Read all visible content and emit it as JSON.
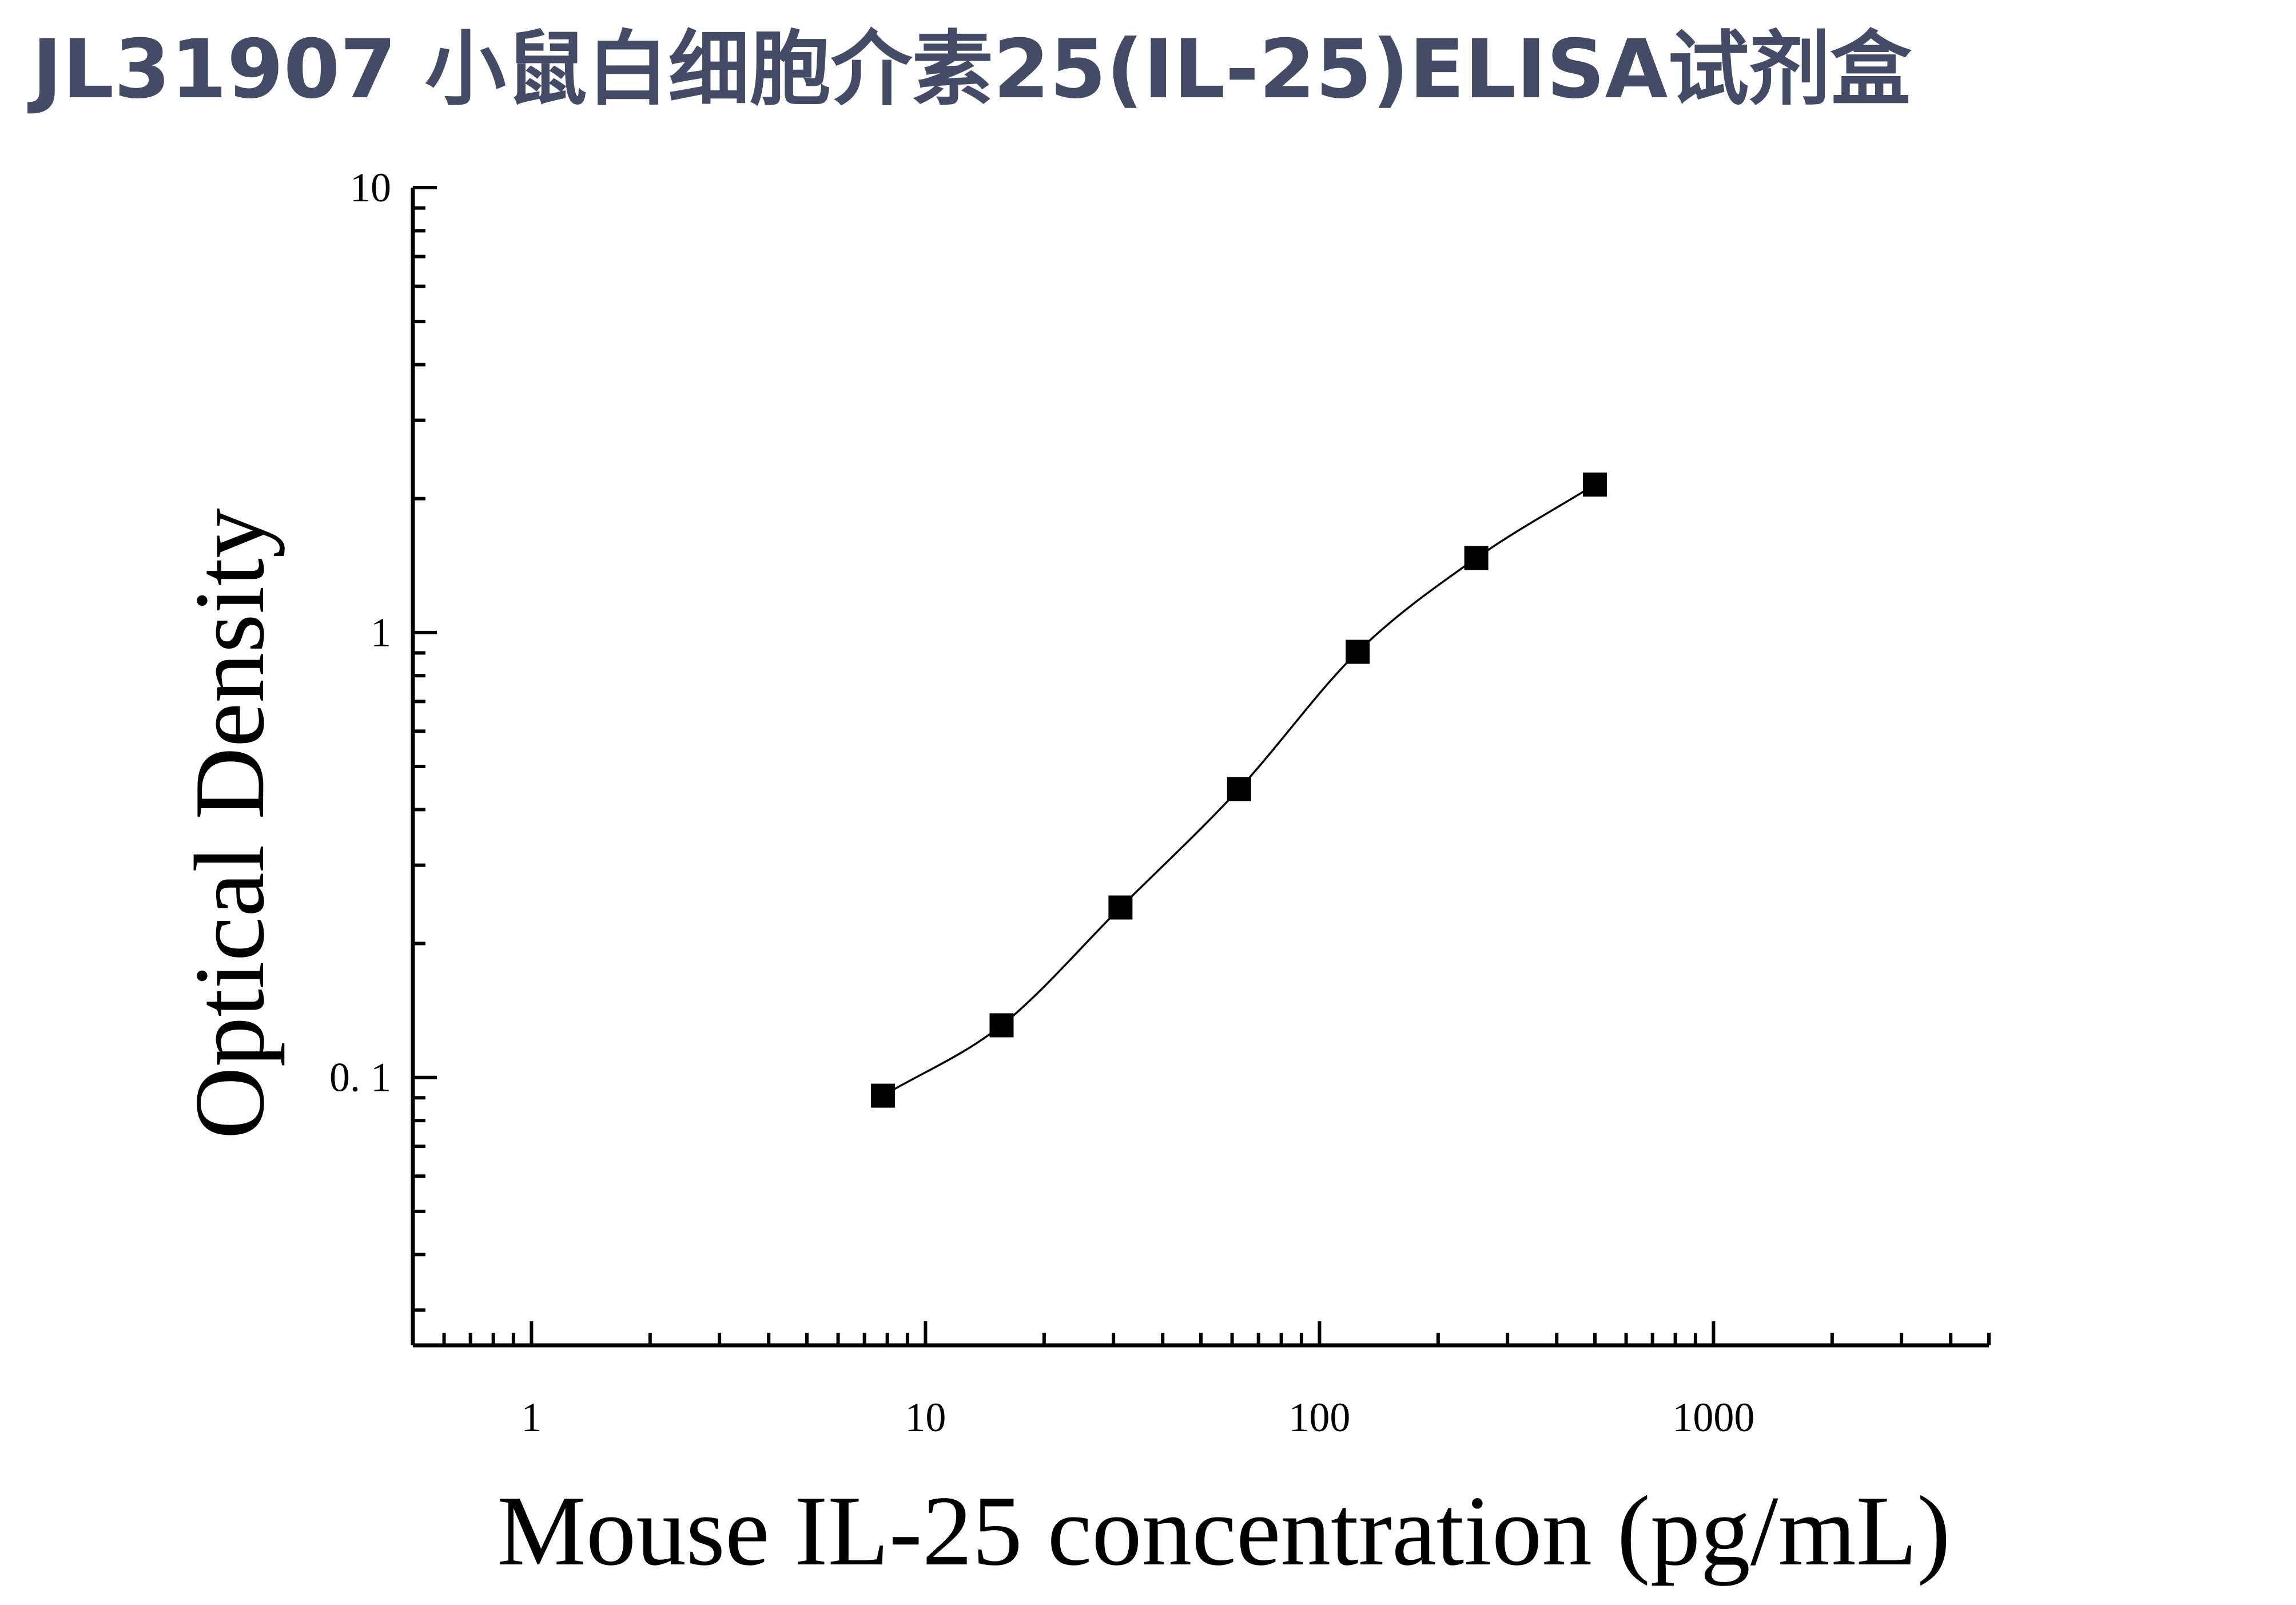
{
  "title": "JL31907 小鼠白细胞介素25(IL-25)ELISA试剂盒",
  "colors": {
    "title": "#434b66",
    "axis": "#000000",
    "marker": "#000000",
    "curve": "#000000"
  },
  "chart_data": {
    "type": "scatter",
    "xlabel": "Mouse IL-25 concentration (pg/mL)",
    "ylabel": "Optical Density",
    "xscale": "log",
    "yscale": "log",
    "xlim": [
      0.5,
      5000
    ],
    "ylim": [
      0.025,
      10
    ],
    "xticks": [
      {
        "value": 1,
        "label": "1"
      },
      {
        "value": 10,
        "label": "10"
      },
      {
        "value": 100,
        "label": "100"
      },
      {
        "value": 1000,
        "label": "1000"
      }
    ],
    "yticks": [
      {
        "value": 0.1,
        "label": "0. 1"
      },
      {
        "value": 1,
        "label": "1"
      },
      {
        "value": 10,
        "label": "10"
      }
    ],
    "grid": false,
    "legend": "none",
    "marker": "square",
    "series": [
      {
        "x": [
          7.8,
          15.6,
          31.25,
          62.5,
          125,
          250,
          500
        ],
        "y": [
          0.091,
          0.131,
          0.241,
          0.445,
          0.905,
          1.47,
          2.15
        ],
        "fit": "four-parameter logistic curve"
      }
    ]
  }
}
